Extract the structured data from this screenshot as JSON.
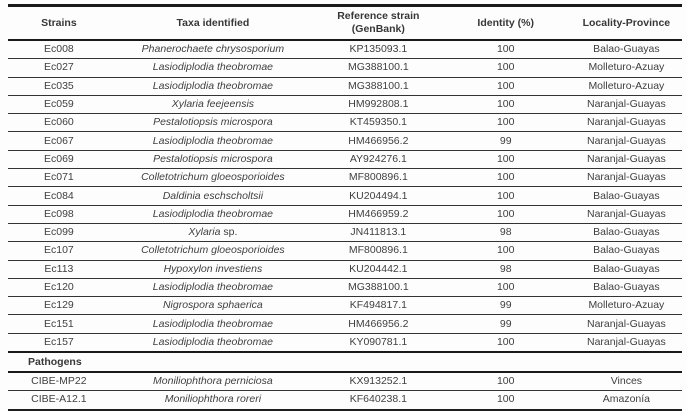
{
  "table": {
    "title": "strains-identification-table",
    "columns": [
      {
        "label": "Strains"
      },
      {
        "label": "Taxa identified"
      },
      {
        "label": "Reference strain",
        "label2": "(GenBank)"
      },
      {
        "label": "Identity (%)"
      },
      {
        "label": "Locality-Province"
      }
    ],
    "rows": [
      {
        "strain": "Ec008",
        "taxa": "Phanerochaete chrysosporium",
        "taxa_suffix": "",
        "reference": "KP135093.1",
        "identity": "100",
        "locality": "Balao-Guayas"
      },
      {
        "strain": "Ec027",
        "taxa": "Lasiodiplodia theobromae",
        "taxa_suffix": "",
        "reference": "MG388100.1",
        "identity": "100",
        "locality": "Molleturo-Azuay"
      },
      {
        "strain": "Ec035",
        "taxa": "Lasiodiplodia theobromae",
        "taxa_suffix": "",
        "reference": "MG388100.1",
        "identity": "100",
        "locality": "Molleturo-Azuay"
      },
      {
        "strain": "Ec059",
        "taxa": "Xylaria feejeensis",
        "taxa_suffix": "",
        "reference": "HM992808.1",
        "identity": "100",
        "locality": "Naranjal-Guayas"
      },
      {
        "strain": "Ec060",
        "taxa": "Pestalotiopsis microspora",
        "taxa_suffix": "",
        "reference": "KT459350.1",
        "identity": "100",
        "locality": "Naranjal-Guayas"
      },
      {
        "strain": "Ec067",
        "taxa": "Lasiodiplodia theobromae",
        "taxa_suffix": "",
        "reference": "HM466956.2",
        "identity": "99",
        "locality": "Naranjal-Guayas"
      },
      {
        "strain": "Ec069",
        "taxa": "Pestalotiopsis microspora",
        "taxa_suffix": "",
        "reference": "AY924276.1",
        "identity": "100",
        "locality": "Naranjal-Guayas"
      },
      {
        "strain": "Ec071",
        "taxa": "Colletotrichum gloeosporioides",
        "taxa_suffix": "",
        "reference": "MF800896.1",
        "identity": "100",
        "locality": "Naranjal-Guayas"
      },
      {
        "strain": "Ec084",
        "taxa": "Daldinia eschscholtsii",
        "taxa_suffix": "",
        "reference": "KU204494.1",
        "identity": "100",
        "locality": "Balao-Guayas"
      },
      {
        "strain": "Ec098",
        "taxa": "Lasiodiplodia theobromae",
        "taxa_suffix": "",
        "reference": "HM466959.2",
        "identity": "100",
        "locality": "Naranjal-Guayas"
      },
      {
        "strain": "Ec099",
        "taxa": "Xylaria",
        "taxa_suffix": " sp.",
        "reference": "JN411813.1",
        "identity": "98",
        "locality": "Balao-Guayas"
      },
      {
        "strain": "Ec107",
        "taxa": "Colletotrichum gloeosporioides",
        "taxa_suffix": "",
        "reference": "MF800896.1",
        "identity": "100",
        "locality": "Balao-Guayas"
      },
      {
        "strain": "Ec113",
        "taxa": "Hypoxylon investiens",
        "taxa_suffix": "",
        "reference": "KU204442.1",
        "identity": "98",
        "locality": "Balao-Guayas"
      },
      {
        "strain": "Ec120",
        "taxa": "Lasiodiplodia theobromae",
        "taxa_suffix": "",
        "reference": "MG388100.1",
        "identity": "100",
        "locality": "Balao-Guayas"
      },
      {
        "strain": "Ec129",
        "taxa": "Nigrospora sphaerica",
        "taxa_suffix": "",
        "reference": "KF494817.1",
        "identity": "99",
        "locality": "Molleturo-Azuay"
      },
      {
        "strain": "Ec151",
        "taxa": "Lasiodiplodia theobromae",
        "taxa_suffix": "",
        "reference": "HM466956.2",
        "identity": "99",
        "locality": "Naranjal-Guayas"
      },
      {
        "strain": "Ec157",
        "taxa": "Lasiodiplodia theobromae",
        "taxa_suffix": "",
        "reference": "KY090781.1",
        "identity": "100",
        "locality": "Naranjal-Guayas"
      },
      {
        "section": "Pathogens"
      },
      {
        "strain": "CIBE-MP22",
        "taxa": "Moniliophthora perniciosa",
        "taxa_suffix": "",
        "reference": "KX913252.1",
        "identity": "100",
        "locality": "Vinces"
      },
      {
        "strain": "CIBE-A12.1",
        "taxa": "Moniliophthora roreri",
        "taxa_suffix": "",
        "reference": "KF640238.1",
        "identity": "100",
        "locality": "Amazonía"
      }
    ]
  }
}
